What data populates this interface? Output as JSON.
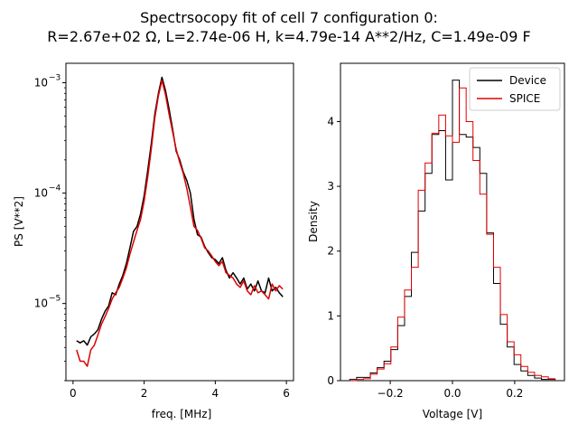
{
  "figure": {
    "title_line1": "Spectrsocopy fit of cell 7 configuration 0:",
    "title_line2": "R=2.67e+02 Ω, L=2.74e-06 H, k=4.79e-14 A**2/Hz, C=1.49e-09 F"
  },
  "colors": {
    "device": "#000000",
    "spice": "#e00000"
  },
  "chart_data": [
    {
      "type": "line",
      "title": "",
      "xlabel": "freq. [MHz]",
      "ylabel": "PS [V**2]",
      "xscale": "linear",
      "yscale": "log",
      "xlim": [
        -0.2,
        6.2
      ],
      "ylim": [
        2e-06,
        0.0015
      ],
      "xticks": [
        0,
        2,
        4,
        6
      ],
      "xtick_labels": [
        "0",
        "2",
        "4",
        "6"
      ],
      "yticks": [
        1e-05,
        0.0001,
        0.001
      ],
      "ytick_labels": [
        "10",
        "10",
        "10"
      ],
      "ytick_exponents": [
        "−5",
        "−4",
        "−3"
      ],
      "series": [
        {
          "name": "Device",
          "color": "#000000",
          "x": [
            0.1,
            0.2,
            0.3,
            0.4,
            0.5,
            0.6,
            0.7,
            0.8,
            0.9,
            1.0,
            1.1,
            1.2,
            1.3,
            1.4,
            1.5,
            1.6,
            1.7,
            1.8,
            1.9,
            2.0,
            2.1,
            2.2,
            2.3,
            2.4,
            2.5,
            2.6,
            2.7,
            2.8,
            2.9,
            3.0,
            3.1,
            3.2,
            3.3,
            3.4,
            3.5,
            3.6,
            3.7,
            3.8,
            3.9,
            4.0,
            4.1,
            4.2,
            4.3,
            4.4,
            4.5,
            4.6,
            4.7,
            4.8,
            4.9,
            5.0,
            5.1,
            5.2,
            5.3,
            5.4,
            5.5,
            5.6,
            5.7,
            5.8,
            5.9
          ],
          "y": [
            4.6e-06,
            4.4e-06,
            4.6e-06,
            4.2e-06,
            5e-06,
            5.3e-06,
            5.8e-06,
            7.2e-06,
            8.5e-06,
            9.5e-06,
            1.25e-05,
            1.2e-05,
            1.5e-05,
            1.8e-05,
            2.3e-05,
            3.2e-05,
            4.5e-05,
            5e-05,
            6.5e-05,
            9.5e-05,
            0.00016,
            0.00028,
            0.00052,
            0.0008,
            0.00112,
            0.00085,
            0.00058,
            0.00038,
            0.00024,
            0.0002,
            0.000155,
            0.00013,
            0.0001,
            5.8e-05,
            4.2e-05,
            4e-05,
            3.3e-05,
            2.9e-05,
            2.6e-05,
            2.5e-05,
            2.3e-05,
            2.6e-05,
            2e-05,
            1.7e-05,
            1.9e-05,
            1.7e-05,
            1.5e-05,
            1.7e-05,
            1.35e-05,
            1.5e-05,
            1.3e-05,
            1.6e-05,
            1.3e-05,
            1.25e-05,
            1.7e-05,
            1.3e-05,
            1.4e-05,
            1.25e-05,
            1.15e-05
          ]
        },
        {
          "name": "SPICE",
          "color": "#e00000",
          "x": [
            0.1,
            0.2,
            0.3,
            0.4,
            0.5,
            0.6,
            0.7,
            0.8,
            0.9,
            1.0,
            1.1,
            1.2,
            1.3,
            1.4,
            1.5,
            1.6,
            1.7,
            1.8,
            1.9,
            2.0,
            2.1,
            2.2,
            2.3,
            2.4,
            2.5,
            2.6,
            2.7,
            2.8,
            2.9,
            3.0,
            3.1,
            3.2,
            3.3,
            3.4,
            3.5,
            3.6,
            3.7,
            3.8,
            3.9,
            4.0,
            4.1,
            4.2,
            4.3,
            4.4,
            4.5,
            4.6,
            4.7,
            4.8,
            4.9,
            5.0,
            5.1,
            5.2,
            5.3,
            5.4,
            5.5,
            5.6,
            5.7,
            5.8,
            5.9
          ],
          "y": [
            3.8e-06,
            3e-06,
            3e-06,
            2.7e-06,
            3.8e-06,
            4.2e-06,
            5.2e-06,
            6.5e-06,
            7.6e-06,
            9e-06,
            1.1e-05,
            1.25e-05,
            1.4e-05,
            1.7e-05,
            2.1e-05,
            2.8e-05,
            3.6e-05,
            4.6e-05,
            5.8e-05,
            8.5e-05,
            0.00014,
            0.00025,
            0.00048,
            0.00076,
            0.00105,
            0.00078,
            0.00052,
            0.00036,
            0.00025,
            0.00019,
            0.00015,
            0.00011,
            7.5e-05,
            5e-05,
            4.6e-05,
            3.9e-05,
            3.2e-05,
            3e-05,
            2.7e-05,
            2.4e-05,
            2.2e-05,
            2.4e-05,
            1.9e-05,
            1.8e-05,
            1.7e-05,
            1.5e-05,
            1.4e-05,
            1.6e-05,
            1.3e-05,
            1.2e-05,
            1.45e-05,
            1.25e-05,
            1.3e-05,
            1.2e-05,
            1.1e-05,
            1.5e-05,
            1.3e-05,
            1.45e-05,
            1.35e-05
          ]
        }
      ]
    },
    {
      "type": "histogram",
      "title": "",
      "xlabel": "Voltage [V]",
      "ylabel": "Density",
      "xlim": [
        -0.36,
        0.36
      ],
      "ylim": [
        0,
        4.9
      ],
      "xticks": [
        -0.2,
        0.0,
        0.2
      ],
      "xtick_labels": [
        "−0.2",
        "0.0",
        "0.2"
      ],
      "yticks": [
        0,
        1,
        2,
        3,
        4
      ],
      "ytick_labels": [
        "0",
        "1",
        "2",
        "3",
        "4"
      ],
      "legend": {
        "position": "top-right",
        "entries": [
          "Device",
          "SPICE"
        ]
      },
      "series": [
        {
          "name": "Device",
          "color": "#000000",
          "edges": [
            -0.33,
            -0.308,
            -0.286,
            -0.264,
            -0.242,
            -0.22,
            -0.198,
            -0.176,
            -0.154,
            -0.132,
            -0.11,
            -0.088,
            -0.066,
            -0.044,
            -0.022,
            0.0,
            0.022,
            0.044,
            0.066,
            0.088,
            0.11,
            0.132,
            0.154,
            0.176,
            0.198,
            0.22,
            0.242,
            0.264,
            0.286,
            0.308,
            0.33
          ],
          "densities": [
            0.02,
            0.05,
            0.05,
            0.12,
            0.2,
            0.3,
            0.48,
            0.85,
            1.3,
            1.98,
            2.62,
            3.2,
            3.8,
            3.86,
            3.1,
            4.64,
            3.8,
            3.76,
            3.6,
            3.2,
            2.28,
            1.5,
            0.87,
            0.52,
            0.25,
            0.15,
            0.08,
            0.04,
            0.02,
            0.02
          ]
        },
        {
          "name": "SPICE",
          "color": "#e00000",
          "edges": [
            -0.33,
            -0.308,
            -0.286,
            -0.264,
            -0.242,
            -0.22,
            -0.198,
            -0.176,
            -0.154,
            -0.132,
            -0.11,
            -0.088,
            -0.066,
            -0.044,
            -0.022,
            0.0,
            0.022,
            0.044,
            0.066,
            0.088,
            0.11,
            0.132,
            0.154,
            0.176,
            0.198,
            0.22,
            0.242,
            0.264,
            0.286,
            0.308,
            0.33
          ],
          "densities": [
            0.0,
            0.02,
            0.03,
            0.1,
            0.18,
            0.26,
            0.52,
            0.98,
            1.4,
            1.75,
            2.94,
            3.36,
            3.82,
            4.1,
            3.78,
            3.68,
            4.52,
            4.0,
            3.4,
            2.88,
            2.26,
            1.75,
            1.02,
            0.6,
            0.4,
            0.22,
            0.13,
            0.08,
            0.06,
            0.03
          ]
        }
      ]
    }
  ]
}
